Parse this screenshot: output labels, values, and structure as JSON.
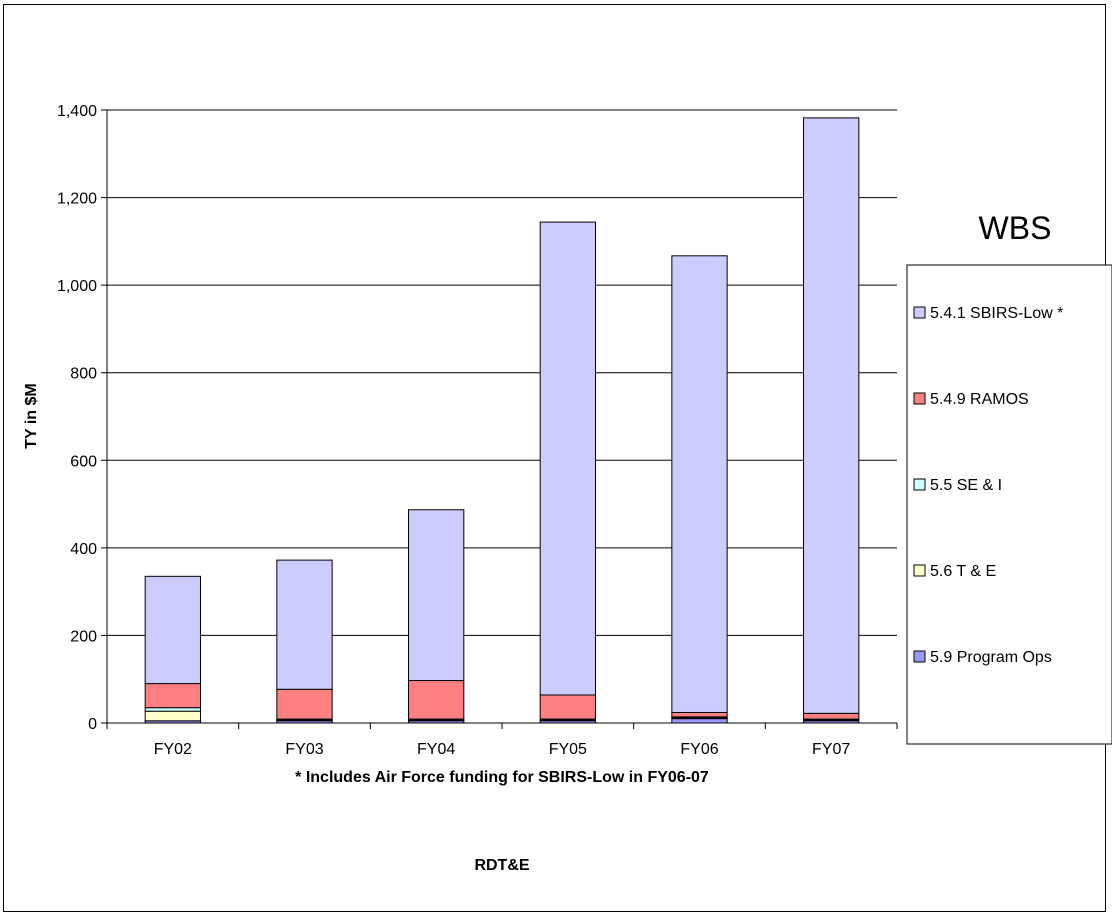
{
  "chart_data": {
    "type": "bar",
    "stacked": true,
    "categories": [
      "FY02",
      "FY03",
      "FY04",
      "FY05",
      "FY06",
      "FY07"
    ],
    "series": [
      {
        "name": "5.9 Program Ops",
        "color": "#9999ff",
        "values": [
          5,
          5,
          5,
          5,
          10,
          5
        ]
      },
      {
        "name": "5.6 T & E",
        "color": "#ffffcc",
        "values": [
          22,
          2,
          2,
          2,
          2,
          2
        ]
      },
      {
        "name": "5.5 SE & I",
        "color": "#ccffff",
        "values": [
          8,
          2,
          2,
          2,
          2,
          2
        ]
      },
      {
        "name": "5.4.9 RAMOS",
        "color": "#ff8080",
        "values": [
          55,
          68,
          88,
          55,
          10,
          13
        ]
      },
      {
        "name": "5.4.1 SBIRS-Low *",
        "color": "#ccccff",
        "values": [
          245,
          295,
          390,
          1080,
          1043,
          1360
        ]
      }
    ],
    "ylabel": "TY in $M",
    "xlabel": "* Includes Air Force funding for SBIRS-Low in FY06-07",
    "caption": "RDT&E",
    "ylim": [
      0,
      1400
    ],
    "yticks": [
      "0",
      "200",
      "400",
      "600",
      "800",
      "1,000",
      "1,200",
      "1,400"
    ],
    "grid": true,
    "legend": {
      "title": "WBS",
      "position": "right",
      "order": [
        "5.4.1 SBIRS-Low *",
        "5.4.9 RAMOS",
        "5.5 SE & I",
        "5.6 T & E",
        "5.9 Program Ops"
      ]
    }
  }
}
